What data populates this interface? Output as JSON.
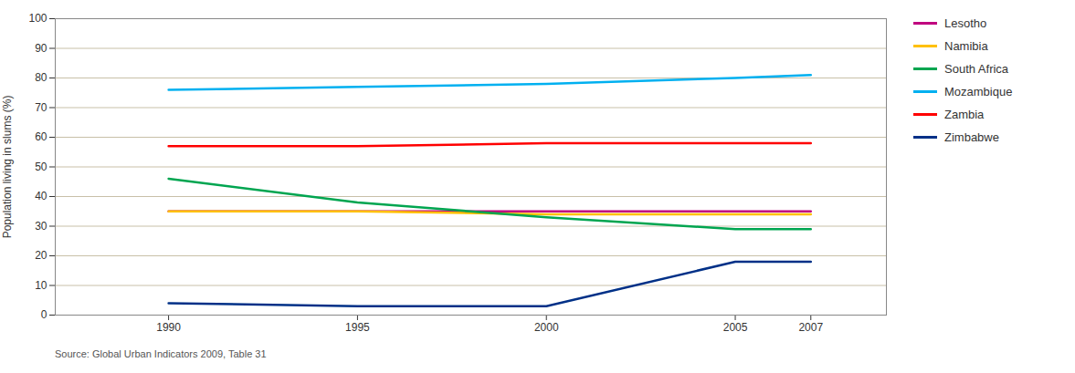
{
  "chart_data": {
    "type": "line",
    "x": [
      1990,
      1995,
      2000,
      2005,
      2007
    ],
    "series": [
      {
        "name": "Lesotho",
        "color": "#C0007F",
        "values": [
          35,
          35,
          35,
          35,
          35
        ]
      },
      {
        "name": "Namibia",
        "color": "#FFC000",
        "values": [
          35,
          35,
          34,
          34,
          34
        ]
      },
      {
        "name": "South Africa",
        "color": "#00A550",
        "values": [
          46,
          38,
          33,
          29,
          29
        ]
      },
      {
        "name": "Mozambique",
        "color": "#00B0F0",
        "values": [
          76,
          77,
          78,
          80,
          81
        ]
      },
      {
        "name": "Zambia",
        "color": "#FF0000",
        "values": [
          57,
          57,
          58,
          58,
          58
        ]
      },
      {
        "name": "Zimbabwe",
        "color": "#003087",
        "values": [
          4,
          3,
          3,
          18,
          18
        ]
      }
    ],
    "ylabel": "Population living in slums (%)",
    "xlim": [
      1987,
      2009
    ],
    "xticks": [
      1990,
      1995,
      2000,
      2005,
      2007
    ],
    "ylim": [
      0,
      100
    ],
    "yticks": [
      0,
      10,
      20,
      30,
      40,
      50,
      60,
      70,
      80,
      90,
      100
    ],
    "grid": "y",
    "legend": "right",
    "caption": "Source: Global Urban Indicators 2009, Table 31"
  }
}
